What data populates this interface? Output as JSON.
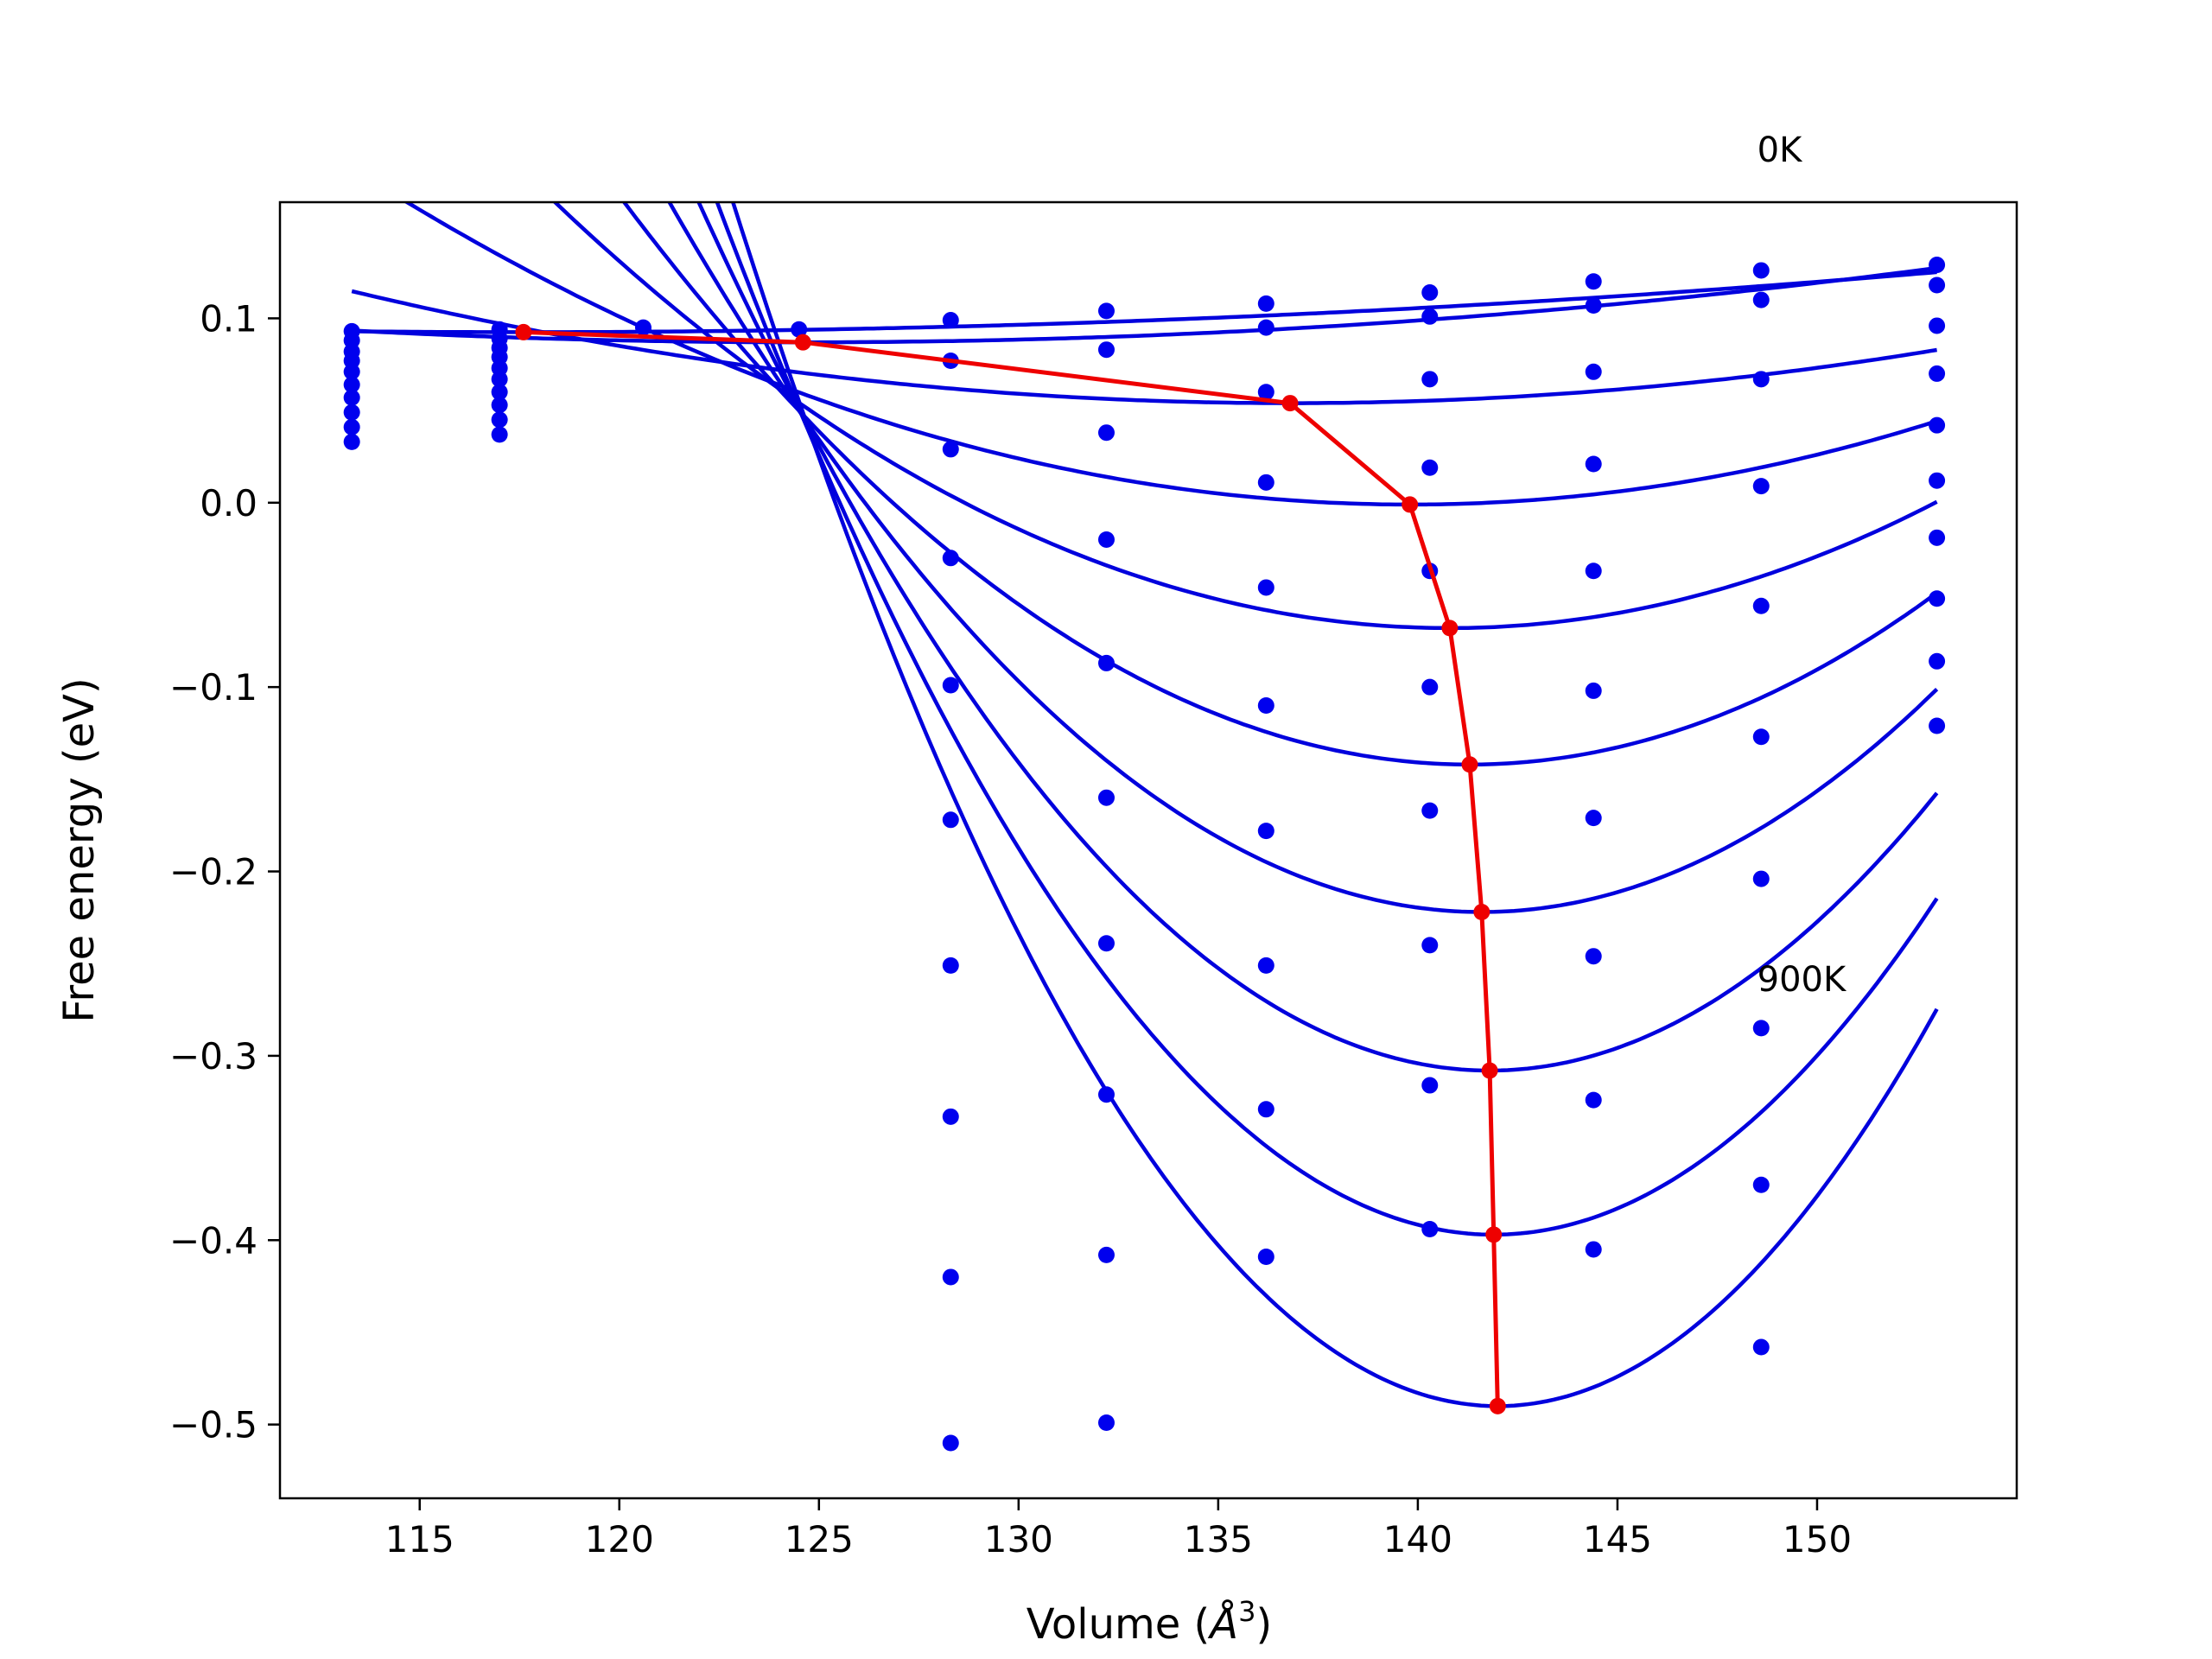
{
  "chart_data": {
    "type": "line",
    "xlabel_main": "Volume (",
    "xlabel_sym": "Å",
    "xlabel_sup": "3",
    "xlabel_close": ")",
    "ylabel": "Free energy (eV)",
    "xlim": [
      111.5,
      155.0
    ],
    "ylim": [
      -0.54,
      0.163
    ],
    "xticks": [
      115,
      120,
      125,
      130,
      135,
      140,
      145,
      150
    ],
    "yticks": [
      -0.5,
      -0.4,
      -0.3,
      -0.2,
      -0.1,
      0.0,
      0.1
    ],
    "xtick_labels": [
      "115",
      "120",
      "125",
      "130",
      "135",
      "140",
      "145",
      "150"
    ],
    "ytick_labels": [
      "−0.5",
      "−0.4",
      "−0.3",
      "−0.2",
      "−0.1",
      "0.0",
      "0.1"
    ],
    "annotations": [
      {
        "text": "0K",
        "x": 148.5,
        "y": 0.185
      },
      {
        "text": "900K",
        "x": 148.5,
        "y": -0.265
      }
    ],
    "curve_color": "#0000dd",
    "point_color": "#0000ee",
    "min_line_color": "#ee0000",
    "fit_x_range": [
      113.3,
      153.0
    ],
    "points_x": [
      113.3,
      117.0,
      120.6,
      124.5,
      128.3,
      132.2,
      136.2,
      140.3,
      144.4,
      148.6,
      153.0
    ],
    "curves": [
      {
        "minima": [
          117.6,
          0.0925
        ],
        "a": 2.6e-05
      },
      {
        "minima": [
          124.6,
          0.087
        ],
        "a": 5e-05
      },
      {
        "minima": [
          136.8,
          0.054
        ],
        "a": 0.00011
      },
      {
        "minima": [
          139.8,
          -0.001
        ],
        "a": 0.00026
      },
      {
        "minima": [
          140.8,
          -0.068
        ],
        "a": 0.00046
      },
      {
        "minima": [
          141.3,
          -0.142
        ],
        "a": 0.00068
      },
      {
        "minima": [
          141.6,
          -0.222
        ],
        "a": 0.00093
      },
      {
        "minima": [
          141.8,
          -0.308
        ],
        "a": 0.0012
      },
      {
        "minima": [
          141.9,
          -0.397
        ],
        "a": 0.00148
      },
      {
        "minima": [
          142.0,
          -0.49
        ],
        "a": 0.00178
      }
    ],
    "scatter_points": [
      {
        "x": 113.3,
        "y": 0.093
      },
      {
        "x": 113.3,
        "y": 0.088
      },
      {
        "x": 113.3,
        "y": 0.082
      },
      {
        "x": 113.3,
        "y": 0.077
      },
      {
        "x": 113.3,
        "y": 0.071
      },
      {
        "x": 113.3,
        "y": 0.064
      },
      {
        "x": 113.3,
        "y": 0.057
      },
      {
        "x": 113.3,
        "y": 0.049
      },
      {
        "x": 113.3,
        "y": 0.041
      },
      {
        "x": 113.3,
        "y": 0.033
      },
      {
        "x": 117.0,
        "y": 0.094
      },
      {
        "x": 117.0,
        "y": 0.089
      },
      {
        "x": 117.0,
        "y": 0.084
      },
      {
        "x": 117.0,
        "y": 0.079
      },
      {
        "x": 117.0,
        "y": 0.073
      },
      {
        "x": 117.0,
        "y": 0.067
      },
      {
        "x": 117.0,
        "y": 0.06
      },
      {
        "x": 117.0,
        "y": 0.053
      },
      {
        "x": 117.0,
        "y": 0.045
      },
      {
        "x": 117.0,
        "y": 0.037
      },
      {
        "x": 120.6,
        "y": 0.095
      },
      {
        "x": 124.5,
        "y": 0.094
      },
      {
        "x": 128.3,
        "y": 0.099
      },
      {
        "x": 128.3,
        "y": 0.077
      },
      {
        "x": 128.3,
        "y": 0.029
      },
      {
        "x": 128.3,
        "y": -0.03
      },
      {
        "x": 128.3,
        "y": -0.099
      },
      {
        "x": 128.3,
        "y": -0.172
      },
      {
        "x": 128.3,
        "y": -0.251
      },
      {
        "x": 128.3,
        "y": -0.333
      },
      {
        "x": 128.3,
        "y": -0.42
      },
      {
        "x": 128.3,
        "y": -0.51
      },
      {
        "x": 132.2,
        "y": 0.104
      },
      {
        "x": 132.2,
        "y": 0.083
      },
      {
        "x": 132.2,
        "y": 0.038
      },
      {
        "x": 132.2,
        "y": -0.02
      },
      {
        "x": 132.2,
        "y": -0.087
      },
      {
        "x": 132.2,
        "y": -0.16
      },
      {
        "x": 132.2,
        "y": -0.239
      },
      {
        "x": 132.2,
        "y": -0.321
      },
      {
        "x": 132.2,
        "y": -0.408
      },
      {
        "x": 132.2,
        "y": -0.499
      },
      {
        "x": 136.2,
        "y": 0.108
      },
      {
        "x": 136.2,
        "y": 0.095
      },
      {
        "x": 136.2,
        "y": 0.06
      },
      {
        "x": 136.2,
        "y": 0.011
      },
      {
        "x": 136.2,
        "y": -0.046
      },
      {
        "x": 136.2,
        "y": -0.11
      },
      {
        "x": 136.2,
        "y": -0.178
      },
      {
        "x": 136.2,
        "y": -0.251
      },
      {
        "x": 136.2,
        "y": -0.329
      },
      {
        "x": 136.2,
        "y": -0.409
      },
      {
        "x": 140.3,
        "y": 0.114
      },
      {
        "x": 140.3,
        "y": 0.101
      },
      {
        "x": 140.3,
        "y": 0.067
      },
      {
        "x": 140.3,
        "y": 0.019
      },
      {
        "x": 140.3,
        "y": -0.037
      },
      {
        "x": 140.3,
        "y": -0.1
      },
      {
        "x": 140.3,
        "y": -0.167
      },
      {
        "x": 140.3,
        "y": -0.24
      },
      {
        "x": 140.3,
        "y": -0.316
      },
      {
        "x": 140.3,
        "y": -0.394
      },
      {
        "x": 144.4,
        "y": 0.12
      },
      {
        "x": 144.4,
        "y": 0.107
      },
      {
        "x": 144.4,
        "y": 0.071
      },
      {
        "x": 144.4,
        "y": 0.021
      },
      {
        "x": 144.4,
        "y": -0.037
      },
      {
        "x": 144.4,
        "y": -0.102
      },
      {
        "x": 144.4,
        "y": -0.171
      },
      {
        "x": 144.4,
        "y": -0.246
      },
      {
        "x": 144.4,
        "y": -0.324
      },
      {
        "x": 144.4,
        "y": -0.405
      },
      {
        "x": 148.6,
        "y": 0.126
      },
      {
        "x": 148.6,
        "y": 0.11
      },
      {
        "x": 148.6,
        "y": 0.067
      },
      {
        "x": 148.6,
        "y": 0.009
      },
      {
        "x": 148.6,
        "y": -0.056
      },
      {
        "x": 148.6,
        "y": -0.127
      },
      {
        "x": 148.6,
        "y": -0.204
      },
      {
        "x": 148.6,
        "y": -0.285
      },
      {
        "x": 148.6,
        "y": -0.37
      },
      {
        "x": 148.6,
        "y": -0.458
      },
      {
        "x": 153.0,
        "y": 0.129
      },
      {
        "x": 153.0,
        "y": 0.118
      },
      {
        "x": 153.0,
        "y": 0.096
      },
      {
        "x": 153.0,
        "y": 0.07
      },
      {
        "x": 153.0,
        "y": 0.042
      },
      {
        "x": 153.0,
        "y": 0.012
      },
      {
        "x": 153.0,
        "y": -0.019
      },
      {
        "x": 153.0,
        "y": -0.052
      },
      {
        "x": 153.0,
        "y": -0.086
      },
      {
        "x": 153.0,
        "y": -0.121
      }
    ],
    "minima_line": [
      {
        "x": 117.6,
        "y": 0.0925
      },
      {
        "x": 124.6,
        "y": 0.087
      },
      {
        "x": 136.8,
        "y": 0.054
      },
      {
        "x": 139.8,
        "y": -0.001
      },
      {
        "x": 140.8,
        "y": -0.068
      },
      {
        "x": 141.3,
        "y": -0.142
      },
      {
        "x": 141.6,
        "y": -0.222
      },
      {
        "x": 141.8,
        "y": -0.308
      },
      {
        "x": 141.9,
        "y": -0.397
      },
      {
        "x": 142.0,
        "y": -0.49
      }
    ]
  }
}
